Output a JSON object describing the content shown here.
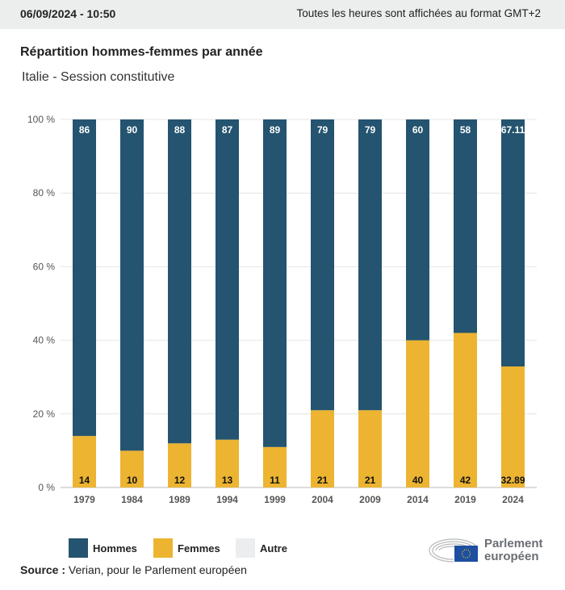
{
  "header": {
    "date": "06/09/2024 - 10:50",
    "timezone_note": "Toutes les heures sont affichées au format GMT+2"
  },
  "title": "Répartition hommes-femmes par année",
  "subtitle": "Italie - Session constitutive",
  "colors": {
    "hommes": "#24546f",
    "femmes": "#ecb431",
    "autre": "#ecedef"
  },
  "legend": [
    {
      "label": "Hommes"
    },
    {
      "label": "Femmes"
    },
    {
      "label": "Autre"
    }
  ],
  "source": {
    "label": "Source :",
    "text": "Verian, pour le Parlement européen"
  },
  "logo": {
    "line1": "Parlement",
    "line2": "européen"
  },
  "chart_data": {
    "type": "bar",
    "stacked": true,
    "title": "Répartition hommes-femmes par année",
    "categories": [
      "1979",
      "1984",
      "1989",
      "1994",
      "1999",
      "2004",
      "2009",
      "2014",
      "2019",
      "2024"
    ],
    "series": [
      {
        "name": "Femmes",
        "values": [
          14,
          10,
          12,
          13,
          11,
          21,
          21,
          40,
          42,
          32.89
        ]
      },
      {
        "name": "Hommes",
        "values": [
          86,
          90,
          88,
          87,
          89,
          79,
          79,
          60,
          58,
          67.11
        ]
      }
    ],
    "yticks": [
      "0 %",
      "20 %",
      "40 %",
      "60 %",
      "80 %",
      "100 %"
    ],
    "ylim": [
      0,
      100
    ],
    "grid": true,
    "legend_position": "bottom-left"
  }
}
